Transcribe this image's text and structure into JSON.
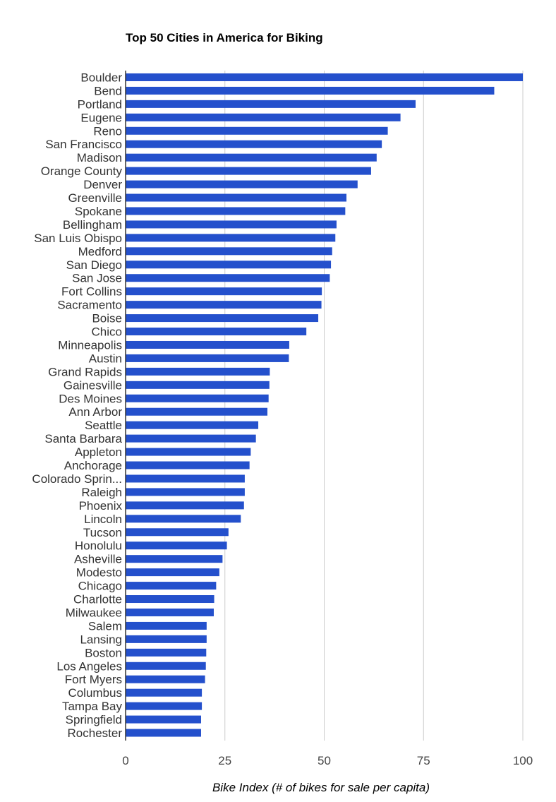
{
  "chart_data": {
    "type": "bar",
    "orientation": "horizontal",
    "title": "Top 50 Cities in America for Biking",
    "xlabel": "Bike Index (# of bikes for sale per capita)",
    "ylabel": "",
    "xlim": [
      0,
      100
    ],
    "xticks": [
      "0",
      "25",
      "50",
      "75",
      "100"
    ],
    "grid": true,
    "legend": "none",
    "bar_color": "#2450cc",
    "categories": [
      "Boulder",
      "Bend",
      "Portland",
      "Eugene",
      "Reno",
      "San Francisco",
      "Madison",
      "Orange County",
      "Denver",
      "Greenville",
      "Spokane",
      "Bellingham",
      "San Luis Obispo",
      "Medford",
      "San Diego",
      "San Jose",
      "Fort Collins",
      "Sacramento",
      "Boise",
      "Chico",
      "Minneapolis",
      "Austin",
      "Grand Rapids",
      "Gainesville",
      "Des Moines",
      "Ann Arbor",
      "Seattle",
      "Santa Barbara",
      "Appleton",
      "Anchorage",
      "Colorado Sprin...",
      "Raleigh",
      "Phoenix",
      "Lincoln",
      "Tucson",
      "Honolulu",
      "Asheville",
      "Modesto",
      "Chicago",
      "Charlotte",
      "Milwaukee",
      "Salem",
      "Lansing",
      "Boston",
      "Los Angeles",
      "Fort Myers",
      "Columbus",
      "Tampa Bay",
      "Springfield",
      "Rochester"
    ],
    "values": [
      100,
      92.8,
      73,
      69.2,
      66,
      64.5,
      63.2,
      61.8,
      58.4,
      55.6,
      55.3,
      53.1,
      52.8,
      52,
      51.7,
      51.4,
      49.4,
      49.3,
      48.5,
      45.5,
      41.2,
      41.1,
      36.3,
      36.2,
      36,
      35.7,
      33.4,
      32.8,
      31.5,
      31.2,
      30,
      30,
      29.8,
      29,
      25.9,
      25.5,
      24.4,
      23.6,
      22.8,
      22.3,
      22.2,
      20.4,
      20.4,
      20.3,
      20.2,
      20,
      19.2,
      19.2,
      19,
      19
    ]
  }
}
